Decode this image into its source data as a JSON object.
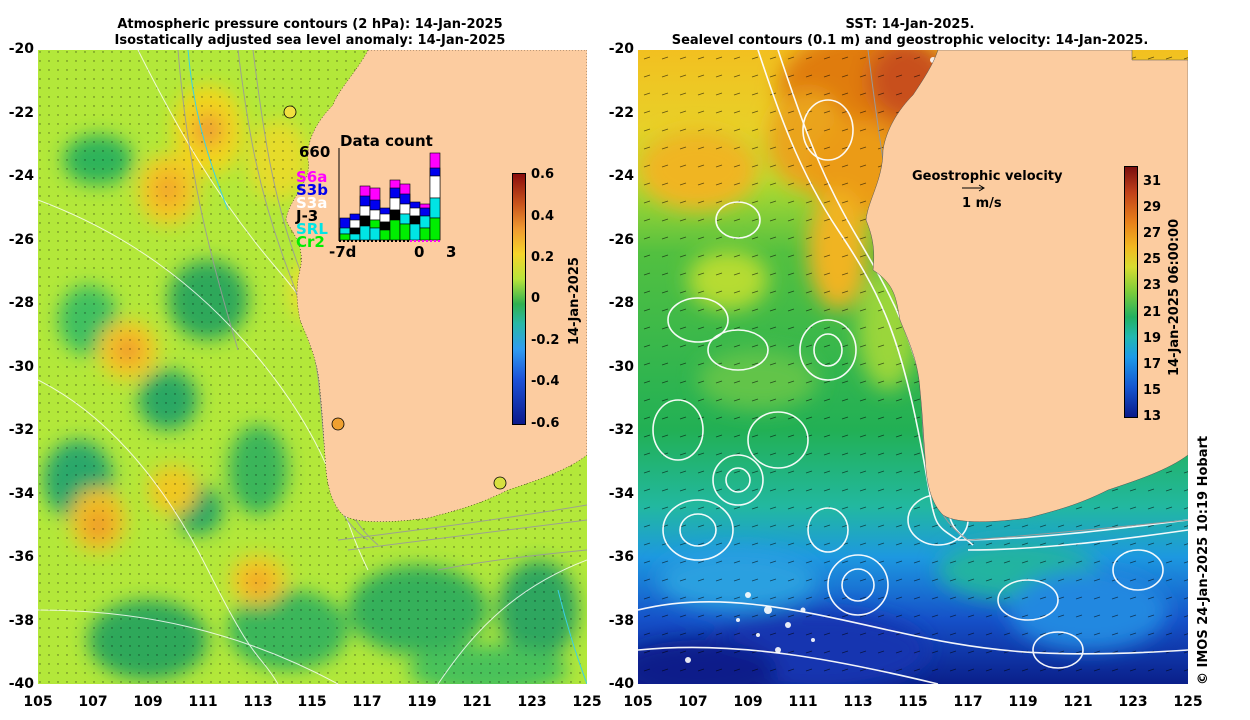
{
  "left_panel": {
    "title_line1": "Atmospheric pressure contours (2 hPa): 14-Jan-2025",
    "title_line2": "Isostatically adjusted sea level anomaly: 14-Jan-2025",
    "colorbar": {
      "ticks": [
        "0.6",
        "0.4",
        "0.2",
        "0",
        "-0.2",
        "-0.4",
        "-0.6"
      ],
      "label": "14-Jan-2025",
      "range": [
        -0.6,
        0.6
      ]
    },
    "data_count": {
      "title": "Data count",
      "max_label": "660",
      "x_labels": [
        "-7d",
        "0",
        "3"
      ],
      "missions": [
        {
          "name": "S6a",
          "color": "#ff00ff"
        },
        {
          "name": "S3b",
          "color": "#0000ee"
        },
        {
          "name": "S3a",
          "color": "#ffffff"
        },
        {
          "name": "J-3",
          "color": "#000000"
        },
        {
          "name": "SRL",
          "color": "#00e5e5"
        },
        {
          "name": "Cr2",
          "color": "#00ee00"
        }
      ]
    }
  },
  "right_panel": {
    "title_line1": "SST: 14-Jan-2025.",
    "title_line2": "Sealevel contours (0.1 m) and geostrophic velocity: 14-Jan-2025.",
    "colorbar": {
      "ticks": [
        "31",
        "29",
        "27",
        "25",
        "23",
        "21",
        "19",
        "17",
        "15",
        "13"
      ],
      "label": "14-Jan-2025 06:00:00",
      "range": [
        13,
        32
      ]
    },
    "velocity_legend": {
      "title": "Geostrophic velocity",
      "scale": "1 m/s"
    }
  },
  "axes": {
    "lon_ticks": [
      "105",
      "107",
      "109",
      "111",
      "113",
      "115",
      "117",
      "119",
      "121",
      "123",
      "125"
    ],
    "lat_ticks": [
      "-20",
      "-22",
      "-24",
      "-26",
      "-28",
      "-30",
      "-32",
      "-34",
      "-36",
      "-38",
      "-40"
    ]
  },
  "credit": "© IMOS 24-Jan-2025 10:19 Hobart",
  "colors": {
    "land": "#fccca0",
    "sla_mid": "#8fe03b",
    "sst_warm": "#e07b10",
    "sst_cold": "#0a2fa5"
  }
}
